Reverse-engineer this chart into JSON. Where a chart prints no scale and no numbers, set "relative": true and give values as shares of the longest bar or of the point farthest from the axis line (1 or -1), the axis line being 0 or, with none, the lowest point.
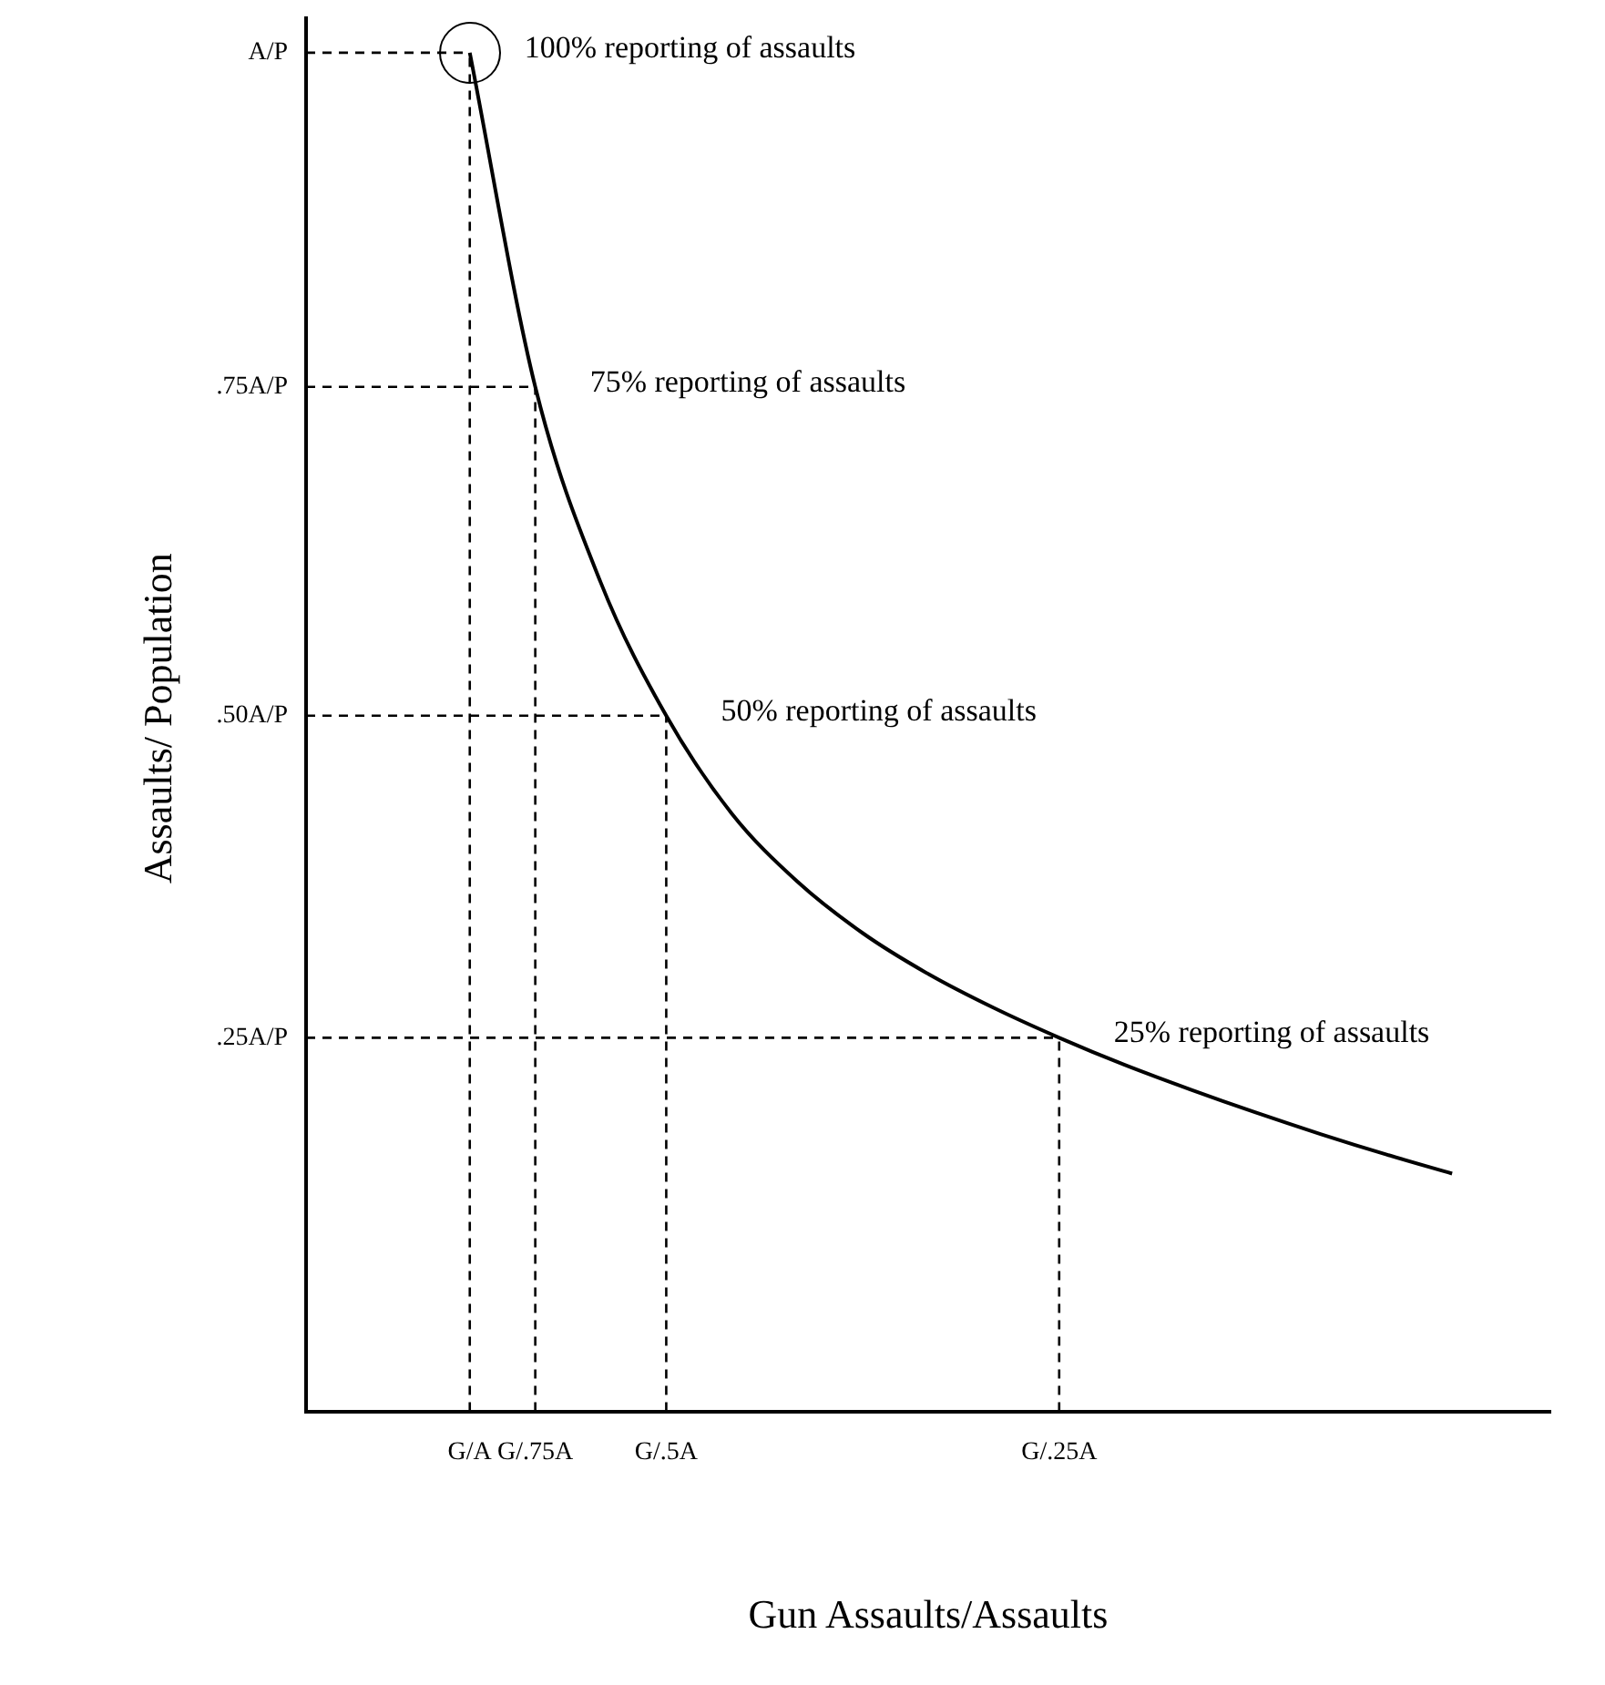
{
  "chart_data": {
    "type": "line",
    "relative": true,
    "xlabel": "Gun Assaults/Assaults",
    "ylabel": "Assaults/ Population",
    "categories": [
      null,
      null,
      "G/A",
      "G/.75A",
      null,
      "G/.5A",
      null,
      null,
      null,
      null,
      null,
      "G/.25A",
      null,
      null,
      null,
      null,
      null,
      null,
      null
    ],
    "marker": "none",
    "series": [
      {
        "color": "#000000",
        "values": [
          null,
          null,
          1,
          0.754,
          0.61,
          0.512,
          0.44,
          0.39,
          0.352,
          0.322,
          0.297,
          0.275,
          0.255,
          0.237,
          0.22,
          0.204,
          0.189,
          0.175,
          null
        ]
      }
    ],
    "ref_lines": [
      {
        "axis": "y",
        "value": 1,
        "label": "A/P",
        "line_style": "dashed"
      },
      {
        "axis": "y",
        "value": 0.754,
        "label": ".75A/P",
        "line_style": "dashed"
      },
      {
        "axis": "y",
        "value": 0.512,
        "label": ".50A/P",
        "line_style": "dashed"
      },
      {
        "axis": "y",
        "value": 0.275,
        "label": ".25A/P",
        "line_style": "dashed"
      },
      {
        "axis": "x",
        "value": "G/A",
        "line_style": "dashed"
      },
      {
        "axis": "x",
        "value": "G/.75A",
        "line_style": "dashed"
      },
      {
        "axis": "x",
        "value": "G/.5A",
        "line_style": "dashed"
      },
      {
        "axis": "x",
        "value": "G/.25A",
        "line_style": "dashed"
      }
    ],
    "annotations": [
      {
        "text": "100% reporting of assaults",
        "x": "G/A",
        "y": 1
      },
      {
        "text": "75% reporting of assaults",
        "x": "G/.75A",
        "y": 0.754
      },
      {
        "text": "50% reporting of assaults",
        "x": "G/.5A",
        "y": 0.512
      },
      {
        "text": "25% reporting of assaults",
        "x": "G/.25A",
        "y": 0.275
      }
    ]
  }
}
